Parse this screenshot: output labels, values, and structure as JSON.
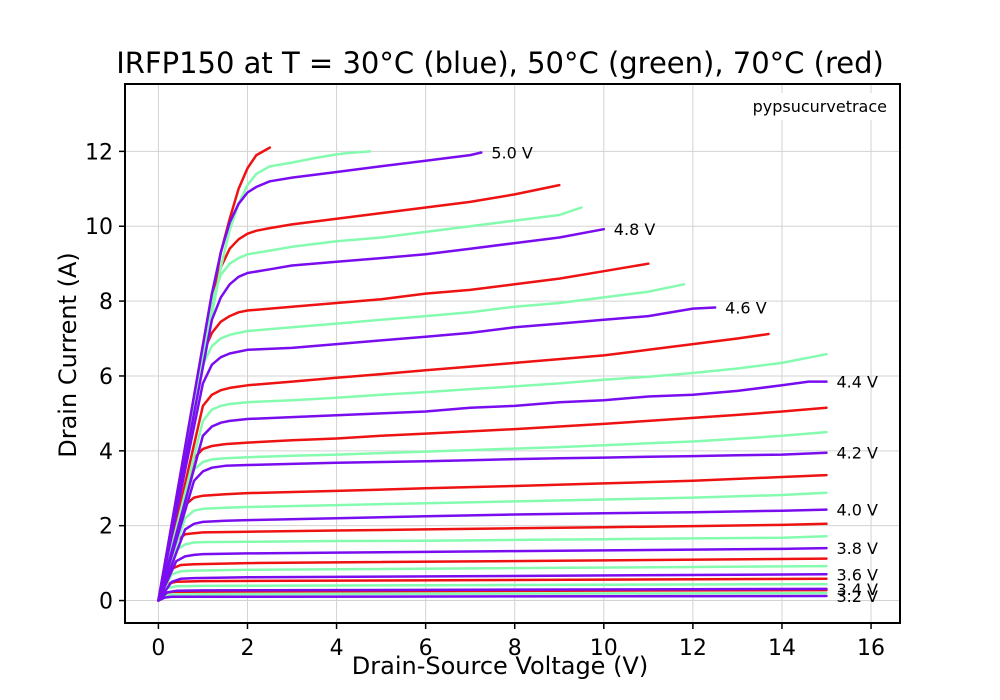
{
  "chart_data": {
    "type": "line",
    "title": "IRFP150 at T = 30°C (blue), 50°C (green), 70°C (red)",
    "xlabel": "Drain-Source Voltage (V)",
    "ylabel": "Drain Current (A)",
    "xlim": [
      -0.75,
      16.65
    ],
    "ylim": [
      -0.6,
      13.8
    ],
    "xticks": [
      0,
      2,
      4,
      6,
      8,
      10,
      12,
      14,
      16
    ],
    "yticks": [
      0,
      2,
      4,
      6,
      8,
      10,
      12
    ],
    "grid": true,
    "annotation": "pypsucurvetrace",
    "temperature_colors": {
      "30": "#7a0df0",
      "50": "#85fbb0",
      "70": "#ee1212"
    },
    "gate_voltage_labels": [
      "5.0 V",
      "4.8 V",
      "4.6 V",
      "4.4 V",
      "4.2 V",
      "4.0 V",
      "3.8 V",
      "3.6 V",
      "3.4 V",
      "3.2 V"
    ],
    "series": [
      {
        "temp": 30,
        "vgs": 5.0,
        "label": "5.0 V",
        "x": [
          0,
          1.2,
          1.4,
          1.6,
          1.8,
          2.0,
          2.2,
          2.5,
          3,
          4,
          5,
          6,
          7,
          7.25
        ],
        "y": [
          0,
          8.2,
          9.3,
          10.1,
          10.6,
          10.9,
          11.05,
          11.2,
          11.3,
          11.45,
          11.6,
          11.75,
          11.9,
          11.97
        ]
      },
      {
        "temp": 30,
        "vgs": 4.8,
        "label": "4.8 V",
        "x": [
          0,
          1.2,
          1.4,
          1.6,
          1.8,
          2.0,
          2.5,
          3,
          4,
          5,
          6,
          7,
          8,
          9,
          10
        ],
        "y": [
          0,
          7.5,
          8.1,
          8.45,
          8.65,
          8.75,
          8.85,
          8.95,
          9.05,
          9.15,
          9.25,
          9.4,
          9.55,
          9.7,
          9.92
        ]
      },
      {
        "temp": 30,
        "vgs": 4.6,
        "label": "4.6 V",
        "x": [
          0,
          1.0,
          1.2,
          1.4,
          1.6,
          2.0,
          3,
          4,
          5,
          6,
          7,
          8,
          9,
          10,
          11,
          12,
          12.5
        ],
        "y": [
          0,
          5.8,
          6.3,
          6.5,
          6.6,
          6.7,
          6.75,
          6.85,
          6.95,
          7.05,
          7.15,
          7.3,
          7.4,
          7.5,
          7.6,
          7.8,
          7.83
        ]
      },
      {
        "temp": 30,
        "vgs": 4.4,
        "label": "4.4 V",
        "x": [
          0,
          1.0,
          1.2,
          1.4,
          1.6,
          2,
          3,
          4,
          5,
          6,
          7,
          8,
          9,
          10,
          11,
          12,
          13,
          14,
          14.6,
          15
        ],
        "y": [
          0,
          4.4,
          4.65,
          4.75,
          4.8,
          4.85,
          4.9,
          4.95,
          5.0,
          5.05,
          5.15,
          5.2,
          5.3,
          5.35,
          5.45,
          5.5,
          5.6,
          5.75,
          5.85,
          5.85
        ]
      },
      {
        "temp": 30,
        "vgs": 4.2,
        "label": "4.2 V",
        "x": [
          0,
          0.8,
          1.0,
          1.2,
          1.5,
          2,
          3,
          4,
          5,
          6,
          7,
          8,
          9,
          10,
          11,
          12,
          13,
          14,
          15
        ],
        "y": [
          0,
          3.2,
          3.45,
          3.55,
          3.6,
          3.62,
          3.65,
          3.68,
          3.7,
          3.72,
          3.75,
          3.78,
          3.8,
          3.82,
          3.84,
          3.86,
          3.88,
          3.9,
          3.95
        ]
      },
      {
        "temp": 30,
        "vgs": 4.0,
        "label": "4.0 V",
        "x": [
          0,
          0.6,
          0.8,
          1.0,
          1.5,
          2,
          4,
          6,
          8,
          10,
          12,
          14,
          15
        ],
        "y": [
          0,
          1.9,
          2.05,
          2.1,
          2.13,
          2.15,
          2.2,
          2.25,
          2.3,
          2.33,
          2.36,
          2.4,
          2.43
        ]
      },
      {
        "temp": 30,
        "vgs": 3.8,
        "label": "3.8 V",
        "x": [
          0,
          0.4,
          0.6,
          0.8,
          1.0,
          2,
          4,
          6,
          8,
          10,
          12,
          14,
          15
        ],
        "y": [
          0,
          1.05,
          1.18,
          1.22,
          1.24,
          1.26,
          1.28,
          1.3,
          1.32,
          1.34,
          1.36,
          1.38,
          1.4
        ]
      },
      {
        "temp": 30,
        "vgs": 3.6,
        "label": "3.6 V",
        "x": [
          0,
          0.3,
          0.5,
          0.8,
          2,
          15
        ],
        "y": [
          0,
          0.5,
          0.58,
          0.6,
          0.62,
          0.7
        ]
      },
      {
        "temp": 30,
        "vgs": 3.4,
        "label": "3.4 V",
        "x": [
          0,
          0.2,
          0.4,
          1,
          15
        ],
        "y": [
          0,
          0.22,
          0.26,
          0.27,
          0.31
        ]
      },
      {
        "temp": 30,
        "vgs": 3.2,
        "label": "3.2 V",
        "x": [
          0,
          0.15,
          0.3,
          1,
          15
        ],
        "y": [
          0,
          0.08,
          0.1,
          0.1,
          0.12
        ]
      },
      {
        "temp": 50,
        "vgs": 5.0,
        "x": [
          0,
          1.4,
          1.6,
          1.8,
          2.0,
          2.2,
          2.5,
          3,
          3.5,
          4,
          4.3,
          4.75
        ],
        "y": [
          0,
          8.9,
          9.9,
          10.6,
          11.1,
          11.4,
          11.6,
          11.7,
          11.82,
          11.92,
          11.96,
          12.0
        ]
      },
      {
        "temp": 50,
        "vgs": 4.8,
        "x": [
          0,
          1.2,
          1.4,
          1.6,
          1.8,
          2.0,
          2.5,
          3,
          4,
          5,
          6,
          7,
          8,
          9,
          9.5
        ],
        "y": [
          0,
          8.0,
          8.7,
          9.0,
          9.15,
          9.25,
          9.35,
          9.45,
          9.6,
          9.7,
          9.85,
          10.0,
          10.15,
          10.3,
          10.5
        ]
      },
      {
        "temp": 50,
        "vgs": 4.6,
        "x": [
          0,
          1.0,
          1.2,
          1.4,
          1.6,
          2.0,
          3,
          4,
          5,
          6,
          7,
          8,
          9,
          10,
          11,
          11.8
        ],
        "y": [
          0,
          6.3,
          6.8,
          7.0,
          7.1,
          7.2,
          7.3,
          7.4,
          7.5,
          7.6,
          7.7,
          7.85,
          7.95,
          8.1,
          8.25,
          8.45
        ]
      },
      {
        "temp": 50,
        "vgs": 4.4,
        "x": [
          0,
          1.0,
          1.2,
          1.4,
          1.6,
          2,
          3,
          4,
          5,
          6,
          7,
          8,
          9,
          10,
          11,
          12,
          13,
          14,
          15
        ],
        "y": [
          0,
          4.8,
          5.1,
          5.2,
          5.25,
          5.3,
          5.35,
          5.42,
          5.5,
          5.57,
          5.65,
          5.72,
          5.8,
          5.9,
          5.98,
          6.08,
          6.2,
          6.35,
          6.58
        ]
      },
      {
        "temp": 50,
        "vgs": 4.2,
        "x": [
          0,
          0.8,
          1.0,
          1.2,
          1.5,
          2,
          3,
          4,
          5,
          6,
          7,
          8,
          9,
          10,
          11,
          12,
          13,
          14,
          15
        ],
        "y": [
          0,
          3.5,
          3.7,
          3.77,
          3.8,
          3.83,
          3.87,
          3.9,
          3.94,
          3.98,
          4.02,
          4.06,
          4.1,
          4.15,
          4.2,
          4.25,
          4.32,
          4.4,
          4.5
        ]
      },
      {
        "temp": 50,
        "vgs": 4.0,
        "x": [
          0,
          0.6,
          0.8,
          1.0,
          1.5,
          2,
          4,
          6,
          8,
          10,
          12,
          14,
          15
        ],
        "y": [
          0,
          2.2,
          2.4,
          2.45,
          2.48,
          2.5,
          2.55,
          2.6,
          2.65,
          2.7,
          2.75,
          2.82,
          2.88
        ]
      },
      {
        "temp": 50,
        "vgs": 3.8,
        "x": [
          0,
          0.4,
          0.6,
          0.8,
          1.0,
          2,
          4,
          6,
          8,
          10,
          12,
          14,
          15
        ],
        "y": [
          0,
          1.35,
          1.5,
          1.55,
          1.56,
          1.57,
          1.59,
          1.6,
          1.62,
          1.64,
          1.66,
          1.68,
          1.72
        ]
      },
      {
        "temp": 50,
        "vgs": 3.6,
        "x": [
          0,
          0.3,
          0.5,
          0.8,
          2,
          15
        ],
        "y": [
          0,
          0.7,
          0.78,
          0.8,
          0.82,
          0.92
        ]
      },
      {
        "temp": 50,
        "vgs": 3.4,
        "x": [
          0,
          0.2,
          0.4,
          1,
          15
        ],
        "y": [
          0,
          0.33,
          0.38,
          0.39,
          0.44
        ]
      },
      {
        "temp": 50,
        "vgs": 3.2,
        "x": [
          0,
          0.15,
          0.3,
          1,
          15
        ],
        "y": [
          0,
          0.14,
          0.16,
          0.17,
          0.2
        ]
      },
      {
        "temp": 70,
        "vgs": 5.0,
        "x": [
          0,
          1.4,
          1.6,
          1.8,
          2.0,
          2.2,
          2.5
        ],
        "y": [
          0,
          9.3,
          10.2,
          11.0,
          11.55,
          11.9,
          12.1
        ]
      },
      {
        "temp": 70,
        "vgs": 4.8,
        "x": [
          0,
          1.2,
          1.4,
          1.6,
          1.8,
          2.0,
          2.2,
          2.5,
          3,
          4,
          5,
          6,
          7,
          8,
          9
        ],
        "y": [
          0,
          8.2,
          8.9,
          9.4,
          9.65,
          9.8,
          9.88,
          9.95,
          10.05,
          10.2,
          10.35,
          10.5,
          10.65,
          10.85,
          11.1
        ]
      },
      {
        "temp": 70,
        "vgs": 4.6,
        "x": [
          0,
          1.0,
          1.2,
          1.4,
          1.6,
          1.8,
          2.0,
          3,
          4,
          5,
          6,
          7,
          8,
          9,
          10,
          11
        ],
        "y": [
          0,
          6.6,
          7.15,
          7.45,
          7.6,
          7.7,
          7.75,
          7.85,
          7.95,
          8.05,
          8.2,
          8.3,
          8.45,
          8.6,
          8.8,
          9.0
        ]
      },
      {
        "temp": 70,
        "vgs": 4.4,
        "x": [
          0,
          1.0,
          1.2,
          1.4,
          1.6,
          2,
          3,
          4,
          5,
          6,
          7,
          8,
          9,
          10,
          11,
          12,
          13,
          13.7
        ],
        "y": [
          0,
          5.2,
          5.5,
          5.62,
          5.68,
          5.75,
          5.85,
          5.95,
          6.05,
          6.15,
          6.25,
          6.35,
          6.45,
          6.55,
          6.7,
          6.85,
          7.0,
          7.12
        ]
      },
      {
        "temp": 70,
        "vgs": 4.2,
        "x": [
          0,
          0.8,
          1.0,
          1.2,
          1.5,
          2,
          3,
          4,
          5,
          6,
          7,
          8,
          9,
          10,
          11,
          12,
          13,
          14,
          15
        ],
        "y": [
          0,
          3.8,
          4.05,
          4.13,
          4.18,
          4.22,
          4.28,
          4.33,
          4.4,
          4.46,
          4.52,
          4.58,
          4.65,
          4.72,
          4.8,
          4.88,
          4.96,
          5.05,
          5.15
        ]
      },
      {
        "temp": 70,
        "vgs": 4.0,
        "x": [
          0,
          0.6,
          0.8,
          1.0,
          1.5,
          2,
          4,
          6,
          8,
          10,
          12,
          14,
          15
        ],
        "y": [
          0,
          2.55,
          2.75,
          2.8,
          2.84,
          2.87,
          2.93,
          3.0,
          3.06,
          3.13,
          3.2,
          3.3,
          3.35
        ]
      },
      {
        "temp": 70,
        "vgs": 3.8,
        "x": [
          0,
          0.4,
          0.6,
          0.8,
          1.0,
          2,
          4,
          6,
          8,
          10,
          12,
          14,
          15
        ],
        "y": [
          0,
          1.6,
          1.77,
          1.8,
          1.82,
          1.84,
          1.87,
          1.9,
          1.93,
          1.96,
          1.99,
          2.02,
          2.05
        ]
      },
      {
        "temp": 70,
        "vgs": 3.6,
        "x": [
          0,
          0.3,
          0.5,
          0.8,
          2,
          15
        ],
        "y": [
          0,
          0.85,
          0.95,
          0.97,
          1.0,
          1.12
        ]
      },
      {
        "temp": 70,
        "vgs": 3.4,
        "x": [
          0,
          0.2,
          0.4,
          1,
          15
        ],
        "y": [
          0,
          0.45,
          0.5,
          0.52,
          0.58
        ]
      },
      {
        "temp": 70,
        "vgs": 3.2,
        "x": [
          0,
          0.15,
          0.3,
          1,
          15
        ],
        "y": [
          0,
          0.2,
          0.23,
          0.24,
          0.28
        ]
      }
    ]
  }
}
